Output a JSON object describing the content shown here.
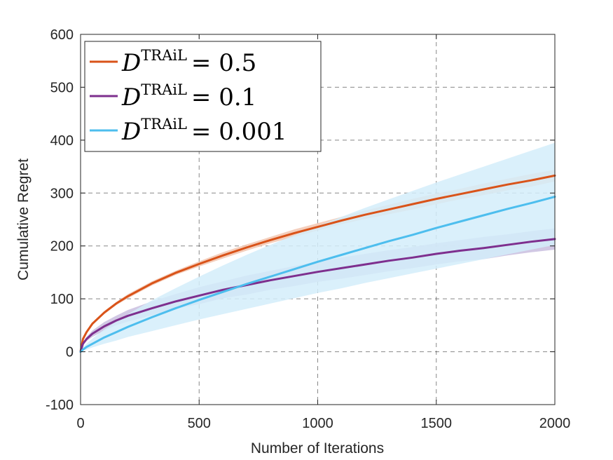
{
  "chart_data": {
    "type": "line",
    "title": "",
    "xlabel": "Number of Iterations",
    "ylabel": "Cumulative Regret",
    "xlim": [
      0,
      2000
    ],
    "ylim": [
      -100,
      600
    ],
    "xticks": [
      0,
      500,
      1000,
      1500,
      2000
    ],
    "yticks": [
      -100,
      0,
      100,
      200,
      300,
      400,
      500,
      600
    ],
    "xtick_labels": [
      "0",
      "500",
      "1000",
      "1500",
      "2000"
    ],
    "ytick_labels": [
      "-100",
      "0",
      "100",
      "200",
      "300",
      "400",
      "500",
      "600"
    ],
    "grid": true,
    "legend_position": "top-left",
    "x": [
      0,
      10,
      25,
      50,
      100,
      150,
      200,
      300,
      400,
      500,
      600,
      700,
      800,
      900,
      1000,
      1100,
      1200,
      1300,
      1400,
      1500,
      1600,
      1700,
      1800,
      1900,
      2000
    ],
    "series": [
      {
        "name": "D_TRAiL_0.5",
        "legend": {
          "symbol": "D",
          "superscript": "TRAiL",
          "relation": "= 0.5"
        },
        "color": "#D95319",
        "band_color": "#F2C6B0",
        "values": [
          0,
          24,
          37,
          53,
          74,
          91,
          105,
          129,
          149,
          166,
          182,
          197,
          211,
          224,
          236,
          248,
          259,
          269,
          279,
          289,
          298,
          307,
          316,
          324,
          333
        ],
        "upper": [
          0,
          25,
          39,
          55,
          77,
          94,
          109,
          133,
          153,
          171,
          188,
          203,
          217,
          231,
          243,
          255,
          267,
          278,
          289,
          299,
          308,
          318,
          327,
          336,
          344
        ],
        "lower": [
          0,
          23,
          35,
          51,
          71,
          88,
          101,
          125,
          145,
          161,
          176,
          191,
          205,
          217,
          229,
          241,
          251,
          260,
          269,
          279,
          288,
          296,
          305,
          312,
          322
        ]
      },
      {
        "name": "D_TRAiL_0.1",
        "legend": {
          "symbol": "D",
          "superscript": "TRAiL",
          "relation": "= 0.1"
        },
        "color": "#7E2F8E",
        "band_color": "#C9BEDF",
        "values": [
          0,
          15,
          24,
          34,
          48,
          59,
          68,
          82,
          95,
          106,
          117,
          126,
          135,
          143,
          151,
          158,
          165,
          172,
          178,
          185,
          191,
          196,
          202,
          208,
          213
        ],
        "upper": [
          0,
          17,
          28,
          40,
          56,
          68,
          79,
          95,
          109,
          122,
          133,
          144,
          153,
          162,
          170,
          178,
          185,
          192,
          198,
          205,
          211,
          217,
          222,
          228,
          233
        ],
        "lower": [
          0,
          13,
          20,
          28,
          40,
          50,
          57,
          69,
          81,
          90,
          101,
          108,
          117,
          124,
          132,
          138,
          145,
          152,
          158,
          165,
          171,
          175,
          182,
          188,
          193
        ]
      },
      {
        "name": "D_TRAiL_0.001",
        "legend": {
          "symbol": "D",
          "superscript": "TRAiL",
          "relation": "= 0.001"
        },
        "color": "#4DBEEE",
        "band_color": "#D3EDFA",
        "values": [
          0,
          4,
          9,
          15,
          27,
          37,
          47,
          65,
          82,
          98,
          113,
          128,
          142,
          156,
          170,
          183,
          196,
          209,
          221,
          234,
          246,
          258,
          270,
          281,
          293
        ],
        "upper": [
          0,
          8,
          15,
          25,
          42,
          57,
          71,
          97,
          120,
          142,
          163,
          183,
          202,
          220,
          238,
          255,
          272,
          288,
          304,
          320,
          335,
          350,
          365,
          380,
          395
        ],
        "lower": [
          0,
          2,
          4,
          8,
          15,
          21,
          28,
          39,
          50,
          61,
          71,
          81,
          91,
          101,
          111,
          120,
          130,
          139,
          148,
          157,
          166,
          175,
          184,
          193,
          202
        ]
      }
    ]
  }
}
